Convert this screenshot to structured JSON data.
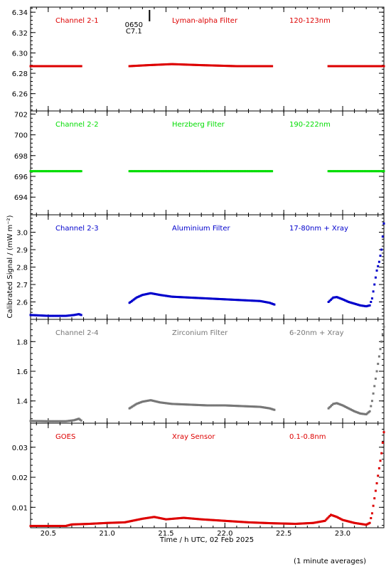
{
  "chart_data": {
    "type": "scatter",
    "xlabel": "Time / h UTC, 02 Feb 2025",
    "ylabel": "Calibrated Signal / (mW m⁻²)",
    "footnote": "(1 minute averages)",
    "xlim": [
      20.35,
      23.35
    ],
    "xticks": [
      20.5,
      21.0,
      21.5,
      22.0,
      22.5,
      23.0
    ],
    "xticklabels": [
      "20.5",
      "21.0",
      "21.5",
      "22.0",
      "22.5",
      "23.0"
    ],
    "flare_marker": {
      "x": 21.36,
      "label_time": "0650",
      "label_class": "C7.1"
    },
    "panels": [
      {
        "name": "Channel 2-1",
        "filter": "Lyman-alpha Filter",
        "band": "120-123nm",
        "color": "#dd0000",
        "ylim": [
          6.243,
          6.345
        ],
        "yticks": [
          6.26,
          6.28,
          6.3,
          6.32,
          6.34
        ],
        "yticklabels": [
          "6.26",
          "6.28",
          "6.30",
          "6.32",
          "6.34"
        ],
        "segments": [
          {
            "x": [
              20.35,
              20.55,
              20.78
            ],
            "y": [
              6.287,
              6.287,
              6.287
            ]
          },
          {
            "x": [
              21.19,
              21.35,
              21.55,
              21.8,
              22.1,
              22.4
            ],
            "y": [
              6.287,
              6.288,
              6.289,
              6.288,
              6.287,
              6.287
            ]
          },
          {
            "x": [
              22.88,
              23.1,
              23.35
            ],
            "y": [
              6.287,
              6.287,
              6.287
            ]
          }
        ]
      },
      {
        "name": "Channel 2-2",
        "filter": "Herzberg Filter",
        "band": "190-222nm",
        "color": "#00dd00",
        "ylim": [
          692.3,
          702.3
        ],
        "yticks": [
          694,
          696,
          698,
          700,
          702
        ],
        "yticklabels": [
          "694",
          "696",
          "698",
          "700",
          "702"
        ],
        "segments": [
          {
            "x": [
              20.35,
              20.55,
              20.78
            ],
            "y": [
              696.5,
              696.5,
              696.5
            ]
          },
          {
            "x": [
              21.19,
              21.5,
              21.8,
              22.1,
              22.4
            ],
            "y": [
              696.5,
              696.5,
              696.5,
              696.5,
              696.5
            ]
          },
          {
            "x": [
              22.88,
              23.1,
              23.35
            ],
            "y": [
              696.5,
              696.5,
              696.5
            ]
          }
        ]
      },
      {
        "name": "Channel 2-3",
        "filter": "Aluminium Filter",
        "band": "17-80nm + Xray",
        "color": "#0000cc",
        "ylim": [
          2.5,
          3.1
        ],
        "yticks": [
          2.6,
          2.7,
          2.8,
          2.9,
          3.0
        ],
        "yticklabels": [
          "2.6",
          "2.7",
          "2.8",
          "2.9",
          "3.0"
        ],
        "segments": [
          {
            "x": [
              20.35,
              20.5,
              20.65,
              20.72,
              20.76,
              20.78
            ],
            "y": [
              2.525,
              2.52,
              2.52,
              2.525,
              2.53,
              2.525
            ]
          },
          {
            "x": [
              21.19,
              21.25,
              21.3,
              21.37,
              21.45,
              21.55,
              21.7,
              21.85,
              22.0,
              22.15,
              22.3,
              22.38,
              22.42
            ],
            "y": [
              2.595,
              2.625,
              2.64,
              2.65,
              2.64,
              2.63,
              2.625,
              2.62,
              2.615,
              2.61,
              2.605,
              2.595,
              2.585
            ]
          },
          {
            "x": [
              22.88,
              22.92,
              22.95,
              23.0,
              23.05,
              23.1,
              23.15,
              23.2,
              23.23,
              23.25,
              23.27,
              23.29,
              23.31,
              23.33,
              23.35
            ],
            "y": [
              2.6,
              2.625,
              2.628,
              2.615,
              2.6,
              2.59,
              2.58,
              2.575,
              2.58,
              2.62,
              2.7,
              2.78,
              2.83,
              2.9,
              3.05
            ]
          }
        ]
      },
      {
        "name": "Channel 2-4",
        "filter": "Zirconium Filter",
        "band": "6-20nm + Xray",
        "color": "#777777",
        "ylim": [
          1.25,
          1.95
        ],
        "yticks": [
          1.4,
          1.6,
          1.8
        ],
        "yticklabels": [
          "1.4",
          "1.6",
          "1.8"
        ],
        "segments": [
          {
            "x": [
              20.35,
              20.5,
              20.65,
              20.72,
              20.76,
              20.78
            ],
            "y": [
              1.265,
              1.263,
              1.263,
              1.27,
              1.28,
              1.268
            ]
          },
          {
            "x": [
              21.19,
              21.25,
              21.3,
              21.37,
              21.45,
              21.55,
              21.7,
              21.85,
              22.0,
              22.15,
              22.3,
              22.38,
              22.42
            ],
            "y": [
              1.35,
              1.38,
              1.395,
              1.405,
              1.39,
              1.38,
              1.375,
              1.37,
              1.37,
              1.365,
              1.36,
              1.35,
              1.34
            ]
          },
          {
            "x": [
              22.88,
              22.92,
              22.95,
              23.0,
              23.05,
              23.1,
              23.15,
              23.2,
              23.23,
              23.25,
              23.27,
              23.29,
              23.31,
              23.33,
              23.35
            ],
            "y": [
              1.35,
              1.38,
              1.385,
              1.37,
              1.35,
              1.33,
              1.315,
              1.31,
              1.33,
              1.4,
              1.5,
              1.6,
              1.7,
              1.8,
              1.9
            ]
          }
        ]
      },
      {
        "name": "GOES",
        "filter": "Xray Sensor",
        "band": "0.1-0.8nm",
        "color": "#dd0000",
        "ylim": [
          0.0032,
          0.038
        ],
        "yticks": [
          0.01,
          0.02,
          0.03
        ],
        "yticklabels": [
          "0.01",
          "0.02",
          "0.03"
        ],
        "segments": [
          {
            "x": [
              20.35,
              20.5,
              20.65,
              20.7,
              20.85,
              21.0,
              21.15,
              21.3,
              21.4,
              21.5,
              21.65,
              21.8,
              22.0,
              22.2,
              22.4,
              22.6,
              22.75,
              22.85,
              22.9,
              22.95,
              23.0,
              23.1,
              23.2,
              23.23,
              23.25,
              23.27,
              23.29,
              23.31,
              23.33,
              23.35
            ],
            "y": [
              0.0038,
              0.0038,
              0.0038,
              0.0043,
              0.0045,
              0.0048,
              0.005,
              0.0062,
              0.0068,
              0.006,
              0.0065,
              0.006,
              0.0055,
              0.005,
              0.0047,
              0.0045,
              0.0048,
              0.0055,
              0.0075,
              0.0068,
              0.0058,
              0.0048,
              0.0042,
              0.0048,
              0.008,
              0.013,
              0.018,
              0.023,
              0.028,
              0.035
            ]
          }
        ]
      }
    ]
  }
}
